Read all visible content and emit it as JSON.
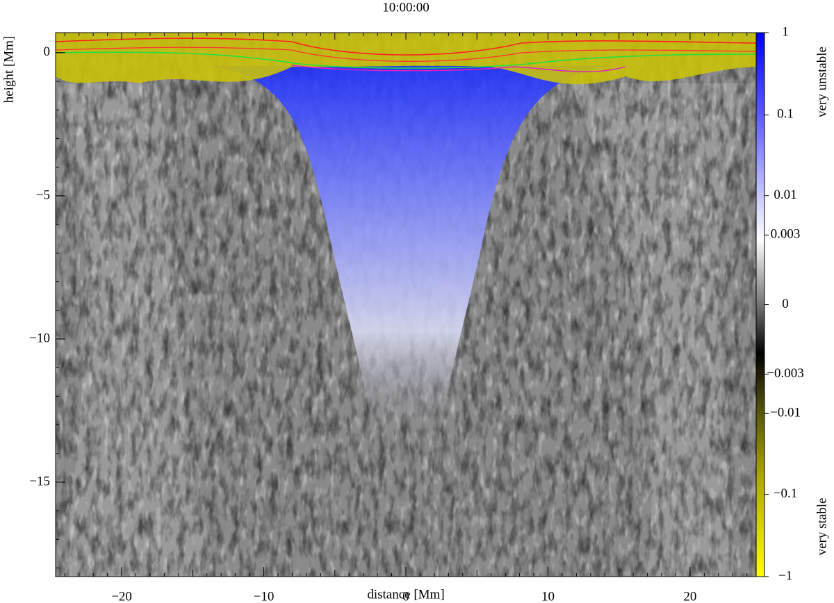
{
  "chart_data": {
    "type": "heatmap",
    "title": "10:00:00",
    "x_label": "distance [Mm]",
    "y_label": "height [Mm]",
    "xlim": [
      -24.65,
      24.65
    ],
    "xticks": [
      {
        "value": -20,
        "label": "−20"
      },
      {
        "value": -10,
        "label": "−10"
      },
      0,
      10,
      20
    ],
    "ylim": [
      -18.3,
      0.7
    ],
    "yticks": [
      0,
      {
        "value": -5,
        "label": "−5"
      },
      {
        "value": -10,
        "label": "−10"
      },
      {
        "value": -15,
        "label": "−15"
      }
    ],
    "colorbar": {
      "scale": "symlog",
      "clim": [
        -1,
        1
      ],
      "ticks": [
        1,
        0.1,
        0.01,
        0.003,
        0,
        {
          "value": -0.003,
          "label": "−0.003"
        },
        {
          "value": -0.01,
          "label": "−0.01"
        },
        {
          "value": -0.1,
          "label": "−0.1"
        },
        {
          "value": -1,
          "label": "−1"
        }
      ],
      "top_label": "very unstable",
      "bottom_label": "very stable"
    }
  }
}
